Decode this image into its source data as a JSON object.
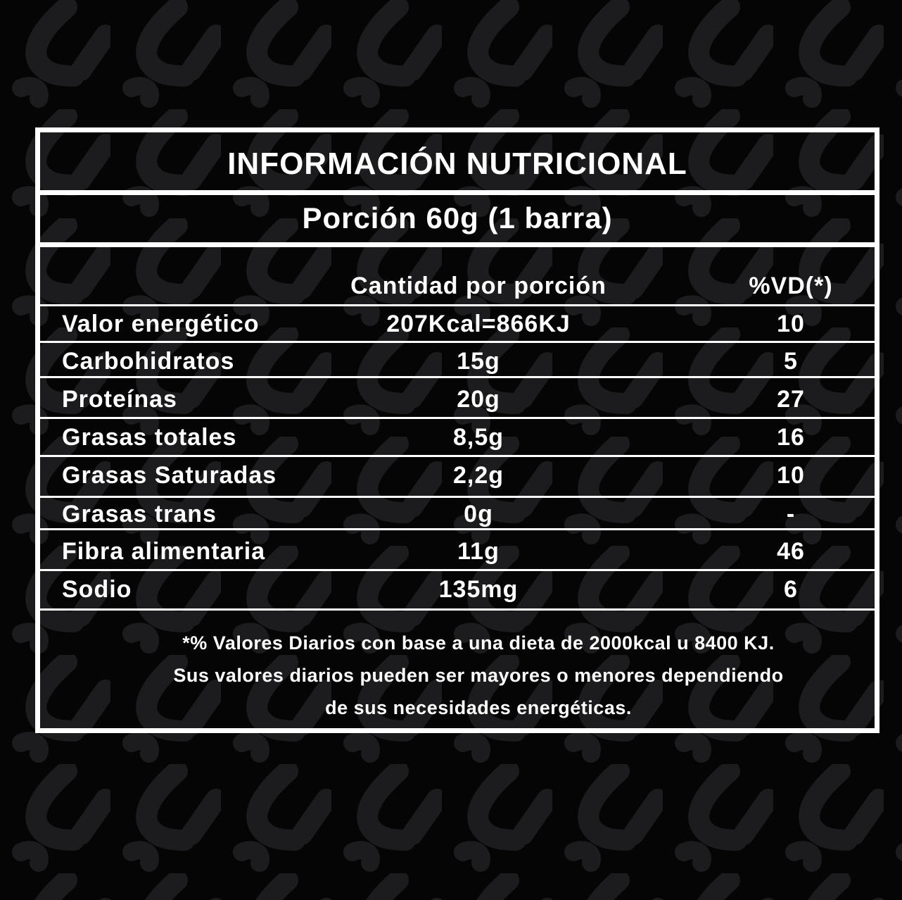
{
  "colors": {
    "background": "#050505",
    "pattern": "#1c1c1e",
    "text": "#ffffff",
    "lines": "#ffffff"
  },
  "title": "INFORMACIÓN NUTRICIONAL",
  "serving": "Porción 60g (1 barra)",
  "headers": {
    "amount": "Cantidad por porción",
    "dv": "%VD(*)"
  },
  "rows": [
    {
      "name": "Valor energético",
      "amount": "207Kcal=866KJ",
      "dv": "10"
    },
    {
      "name": "Carbohidratos",
      "amount": "15g",
      "dv": "5"
    },
    {
      "name": "Proteínas",
      "amount": "20g",
      "dv": "27"
    },
    {
      "name": "Grasas totales",
      "amount": "8,5g",
      "dv": "16"
    },
    {
      "name": "Grasas Saturadas",
      "amount": "2,2g",
      "dv": "10"
    },
    {
      "name": "Grasas trans",
      "amount": "0g",
      "dv": "-"
    },
    {
      "name": "Fibra alimentaria",
      "amount": "11g",
      "dv": "46"
    },
    {
      "name": "Sodio",
      "amount": "135mg",
      "dv": "6"
    }
  ],
  "footnote": [
    "*% Valores Diarios con base a una dieta de 2000kcal u 8400 KJ.",
    "Sus valores diarios pueden ser mayores o menores dependiendo",
    "de sus necesidades energéticas."
  ]
}
